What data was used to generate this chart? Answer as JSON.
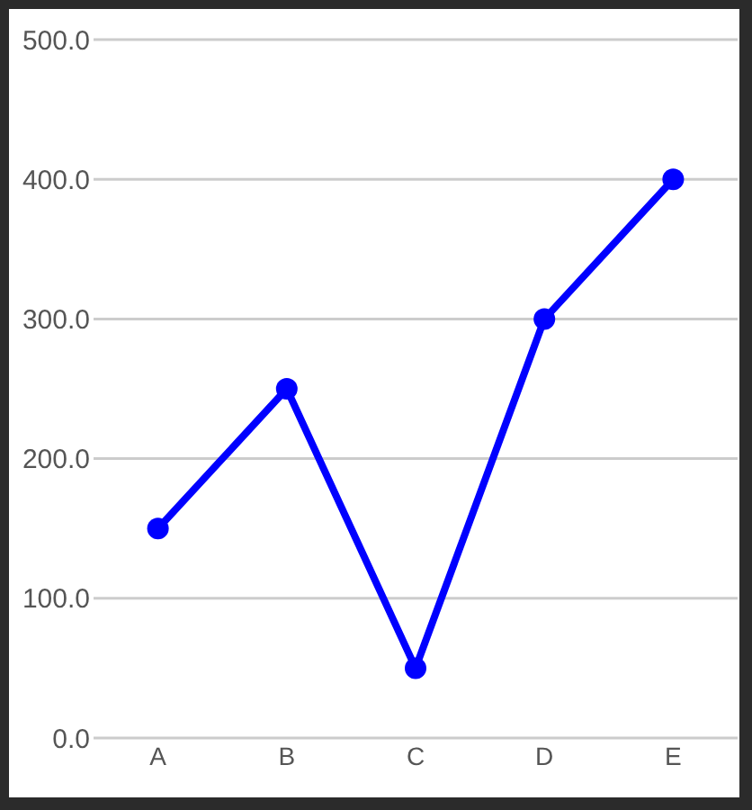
{
  "chart_data": {
    "type": "line",
    "categories": [
      "A",
      "B",
      "C",
      "D",
      "E"
    ],
    "series": [
      {
        "color": "#0000ff",
        "values": [
          150,
          250,
          50,
          300,
          400
        ]
      }
    ],
    "ylim": [
      0,
      500
    ],
    "yticks": [
      {
        "value": 0,
        "label": "0.0"
      },
      {
        "value": 100,
        "label": "100.0"
      },
      {
        "value": 200,
        "label": "200.0"
      },
      {
        "value": 300,
        "label": "300.0"
      },
      {
        "value": 400,
        "label": "400.0"
      },
      {
        "value": 500,
        "label": "500.0"
      }
    ],
    "grid": "y",
    "marker": "circle"
  }
}
